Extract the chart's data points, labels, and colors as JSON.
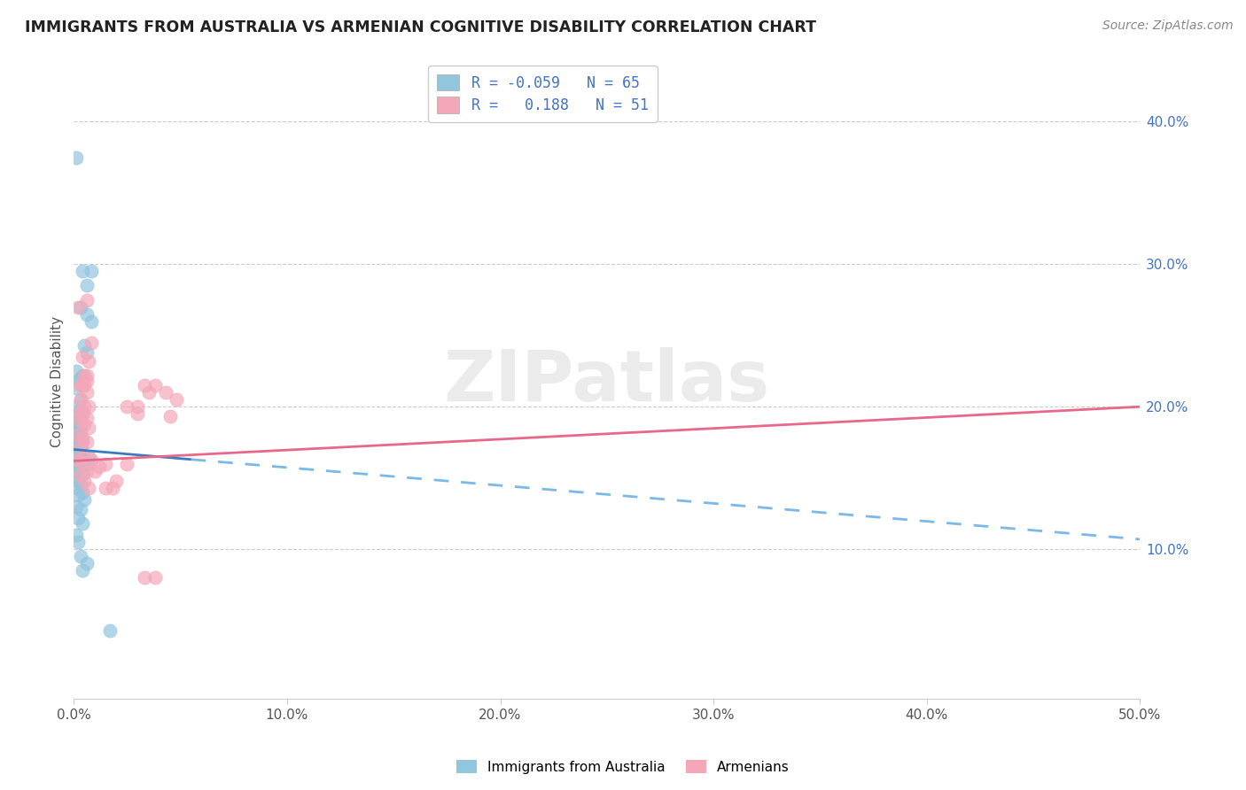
{
  "title": "IMMIGRANTS FROM AUSTRALIA VS ARMENIAN COGNITIVE DISABILITY CORRELATION CHART",
  "source": "Source: ZipAtlas.com",
  "ylabel": "Cognitive Disability",
  "right_ytick_vals": [
    0.1,
    0.2,
    0.3,
    0.4
  ],
  "xlim": [
    0.0,
    0.5
  ],
  "ylim": [
    -0.005,
    0.44
  ],
  "color_blue": "#92c5de",
  "color_pink": "#f4a7b9",
  "blue_scatter": [
    [
      0.001,
      0.375
    ],
    [
      0.006,
      0.285
    ],
    [
      0.004,
      0.295
    ],
    [
      0.006,
      0.265
    ],
    [
      0.008,
      0.295
    ],
    [
      0.003,
      0.27
    ],
    [
      0.008,
      0.26
    ],
    [
      0.002,
      0.218
    ],
    [
      0.004,
      0.222
    ],
    [
      0.003,
      0.22
    ],
    [
      0.001,
      0.213
    ],
    [
      0.005,
      0.243
    ],
    [
      0.006,
      0.238
    ],
    [
      0.002,
      0.2
    ],
    [
      0.003,
      0.198
    ],
    [
      0.001,
      0.225
    ],
    [
      0.002,
      0.19
    ],
    [
      0.003,
      0.188
    ],
    [
      0.001,
      0.185
    ],
    [
      0.002,
      0.183
    ],
    [
      0.003,
      0.205
    ],
    [
      0.001,
      0.178
    ],
    [
      0.002,
      0.175
    ],
    [
      0.004,
      0.195
    ],
    [
      0.001,
      0.192
    ],
    [
      0.002,
      0.188
    ],
    [
      0.003,
      0.183
    ],
    [
      0.001,
      0.18
    ],
    [
      0.002,
      0.176
    ],
    [
      0.001,
      0.172
    ],
    [
      0.002,
      0.17
    ],
    [
      0.004,
      0.175
    ],
    [
      0.001,
      0.17
    ],
    [
      0.002,
      0.168
    ],
    [
      0.003,
      0.165
    ],
    [
      0.001,
      0.163
    ],
    [
      0.003,
      0.172
    ],
    [
      0.001,
      0.158
    ],
    [
      0.003,
      0.163
    ],
    [
      0.004,
      0.16
    ],
    [
      0.001,
      0.168
    ],
    [
      0.002,
      0.165
    ],
    [
      0.006,
      0.16
    ],
    [
      0.007,
      0.165
    ],
    [
      0.003,
      0.162
    ],
    [
      0.002,
      0.158
    ],
    [
      0.001,
      0.155
    ],
    [
      0.004,
      0.152
    ],
    [
      0.001,
      0.15
    ],
    [
      0.002,
      0.148
    ],
    [
      0.003,
      0.145
    ],
    [
      0.001,
      0.143
    ],
    [
      0.004,
      0.14
    ],
    [
      0.002,
      0.138
    ],
    [
      0.005,
      0.135
    ],
    [
      0.001,
      0.13
    ],
    [
      0.003,
      0.128
    ],
    [
      0.002,
      0.122
    ],
    [
      0.004,
      0.118
    ],
    [
      0.001,
      0.11
    ],
    [
      0.002,
      0.105
    ],
    [
      0.003,
      0.095
    ],
    [
      0.006,
      0.09
    ],
    [
      0.004,
      0.085
    ],
    [
      0.017,
      0.043
    ]
  ],
  "pink_scatter": [
    [
      0.002,
      0.27
    ],
    [
      0.006,
      0.275
    ],
    [
      0.008,
      0.245
    ],
    [
      0.004,
      0.235
    ],
    [
      0.007,
      0.232
    ],
    [
      0.005,
      0.222
    ],
    [
      0.006,
      0.222
    ],
    [
      0.004,
      0.215
    ],
    [
      0.006,
      0.218
    ],
    [
      0.003,
      0.215
    ],
    [
      0.005,
      0.215
    ],
    [
      0.006,
      0.21
    ],
    [
      0.003,
      0.205
    ],
    [
      0.005,
      0.2
    ],
    [
      0.007,
      0.2
    ],
    [
      0.004,
      0.195
    ],
    [
      0.002,
      0.195
    ],
    [
      0.006,
      0.192
    ],
    [
      0.003,
      0.19
    ],
    [
      0.005,
      0.188
    ],
    [
      0.007,
      0.185
    ],
    [
      0.002,
      0.18
    ],
    [
      0.004,
      0.178
    ],
    [
      0.006,
      0.175
    ],
    [
      0.003,
      0.172
    ],
    [
      0.005,
      0.165
    ],
    [
      0.008,
      0.163
    ],
    [
      0.002,
      0.163
    ],
    [
      0.004,
      0.16
    ],
    [
      0.006,
      0.155
    ],
    [
      0.003,
      0.152
    ],
    [
      0.005,
      0.148
    ],
    [
      0.007,
      0.143
    ],
    [
      0.01,
      0.155
    ],
    [
      0.012,
      0.158
    ],
    [
      0.015,
      0.16
    ],
    [
      0.018,
      0.143
    ],
    [
      0.015,
      0.143
    ],
    [
      0.02,
      0.148
    ],
    [
      0.025,
      0.16
    ],
    [
      0.03,
      0.2
    ],
    [
      0.025,
      0.2
    ],
    [
      0.03,
      0.195
    ],
    [
      0.033,
      0.215
    ],
    [
      0.035,
      0.21
    ],
    [
      0.038,
      0.215
    ],
    [
      0.043,
      0.21
    ],
    [
      0.048,
      0.205
    ],
    [
      0.045,
      0.193
    ],
    [
      0.033,
      0.08
    ],
    [
      0.038,
      0.08
    ]
  ],
  "blue_solid_line": [
    [
      0.0,
      0.17
    ],
    [
      0.055,
      0.163
    ]
  ],
  "blue_dashed_line": [
    [
      0.055,
      0.163
    ],
    [
      0.5,
      0.107
    ]
  ],
  "pink_solid_line": [
    [
      0.0,
      0.162
    ],
    [
      0.5,
      0.2
    ]
  ],
  "watermark_text": "ZIPatlas",
  "legend_entries": [
    {
      "label": "R = -0.059   N = 65",
      "color": "#92c5de"
    },
    {
      "label": "R =   0.188   N = 51",
      "color": "#f4a7b9"
    }
  ],
  "bottom_legend": [
    {
      "label": "Immigrants from Australia",
      "color": "#92c5de"
    },
    {
      "label": "Armenians",
      "color": "#f4a7b9"
    }
  ]
}
